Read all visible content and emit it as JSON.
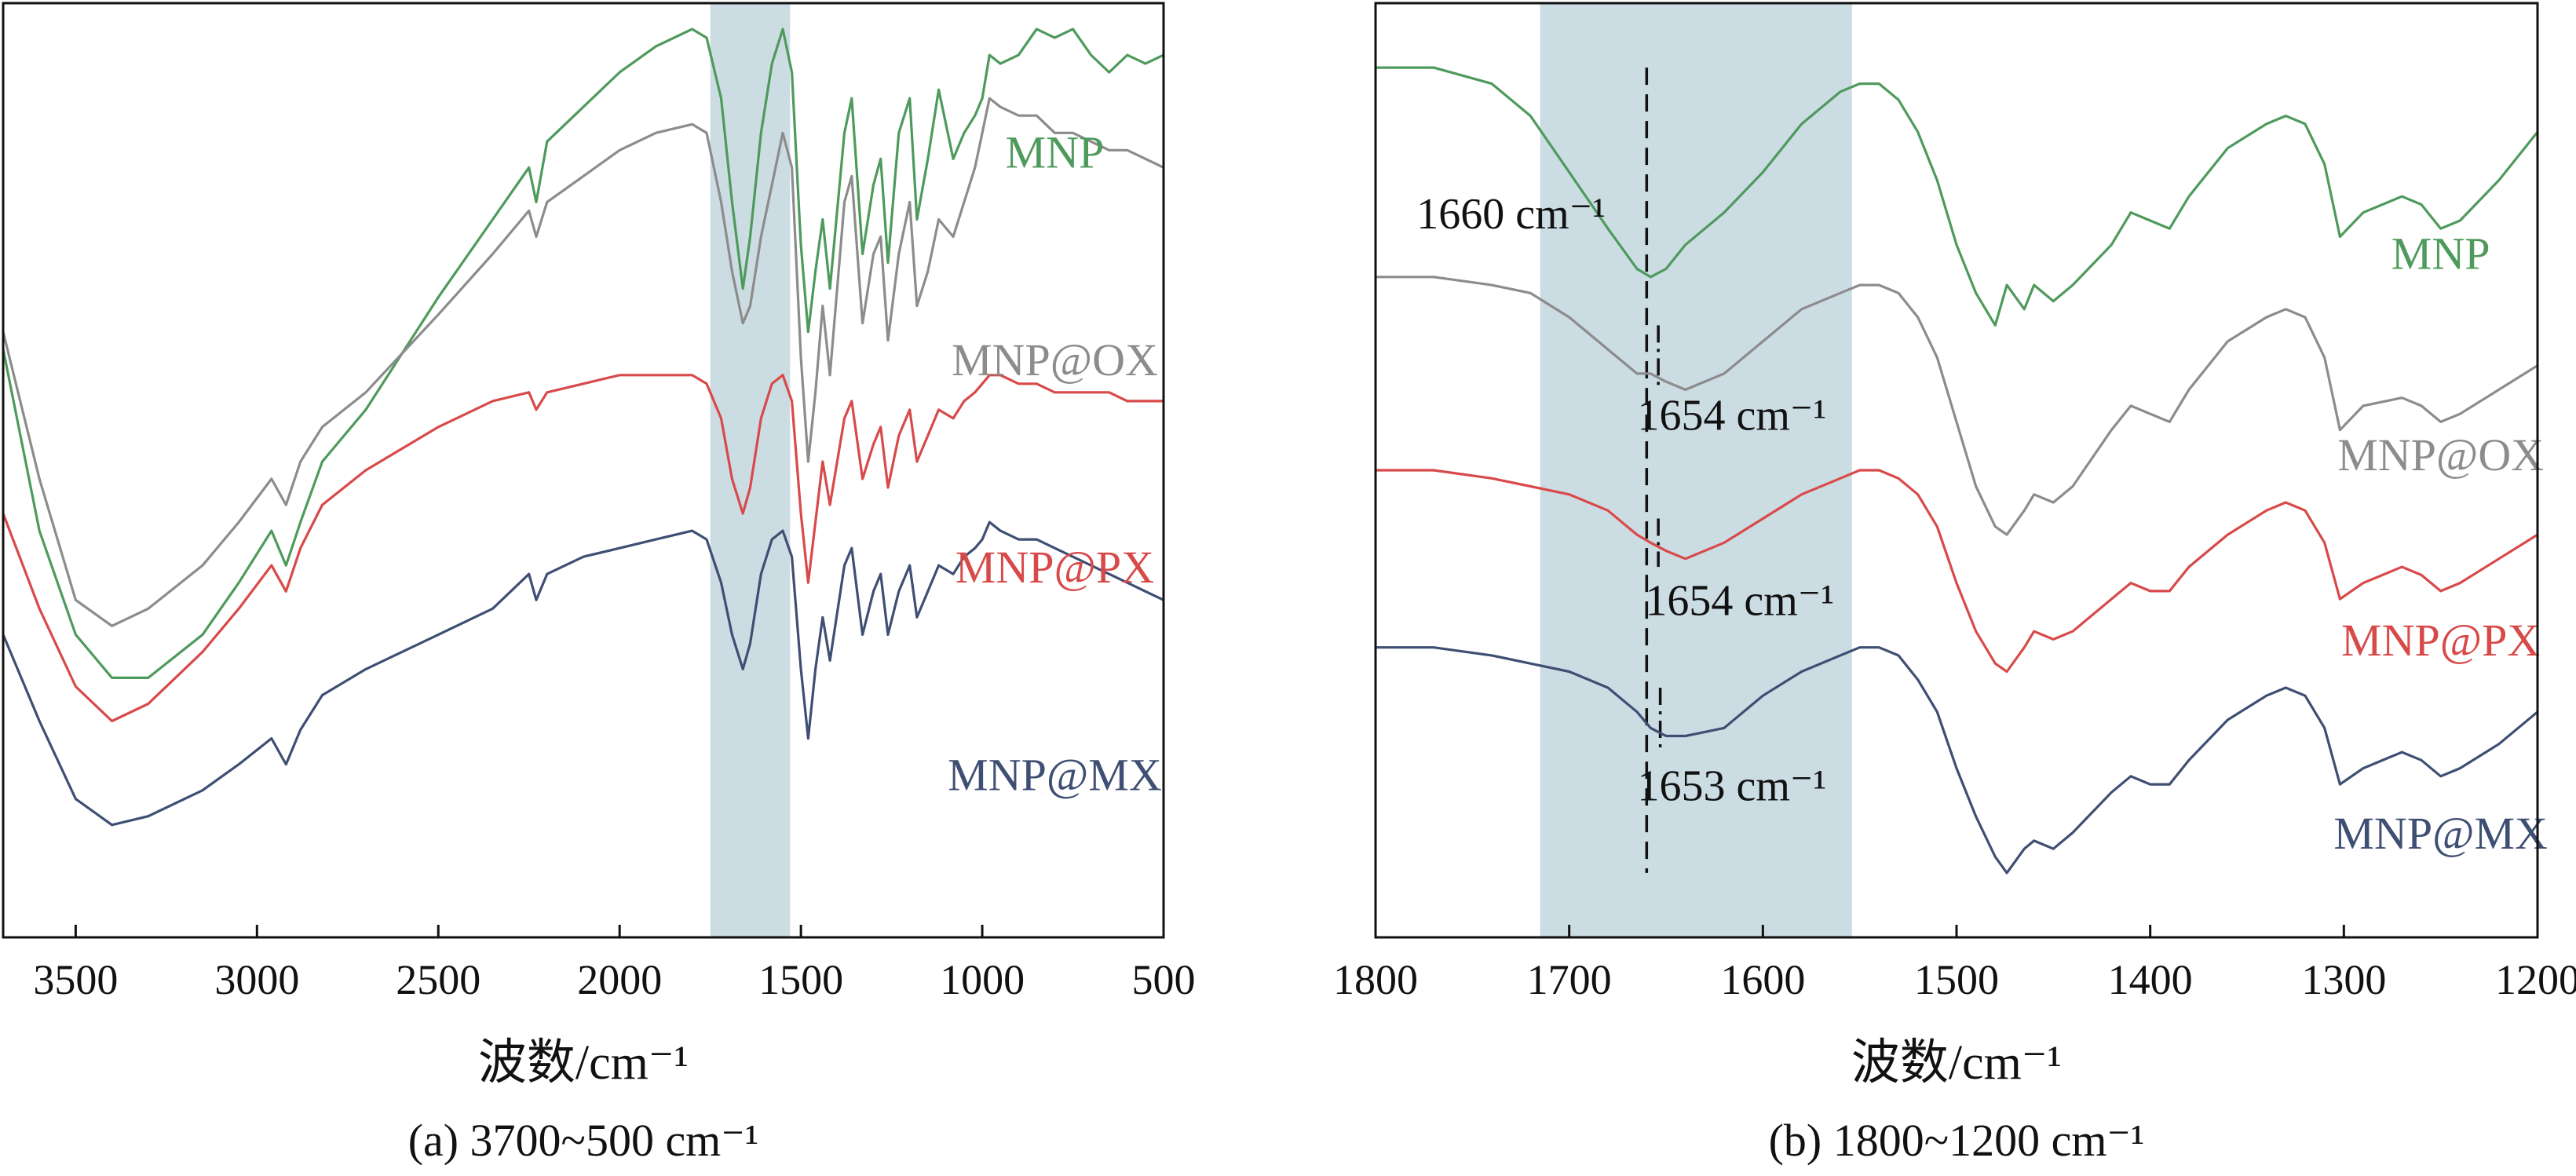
{
  "chart_data": [
    {
      "type": "line",
      "caption": "(a) 3700~500 cm⁻¹",
      "xlabel": "波数/cm⁻¹",
      "ylabel": "",
      "xlim": [
        3700,
        500
      ],
      "x_reversed": true,
      "y_ticks": false,
      "xticks": [
        3500,
        3000,
        2500,
        2000,
        1500,
        1000,
        500
      ],
      "highlight_band": [
        1750,
        1530
      ],
      "highlight_color": "#ccdce3",
      "series": [
        {
          "name": "MNP",
          "color": "#4e9a5c",
          "x": [
            3700,
            3600,
            3500,
            3400,
            3300,
            3150,
            3050,
            2960,
            2920,
            2880,
            2820,
            2700,
            2500,
            2350,
            2250,
            2230,
            2200,
            2100,
            2000,
            1900,
            1800,
            1760,
            1720,
            1690,
            1660,
            1640,
            1610,
            1580,
            1550,
            1525,
            1500,
            1480,
            1460,
            1440,
            1420,
            1380,
            1360,
            1330,
            1300,
            1280,
            1260,
            1230,
            1200,
            1180,
            1150,
            1120,
            1080,
            1050,
            1020,
            1000,
            980,
            950,
            900,
            850,
            800,
            750,
            700,
            650,
            600,
            550,
            500
          ],
          "y": [
            0.63,
            0.42,
            0.3,
            0.25,
            0.25,
            0.3,
            0.36,
            0.42,
            0.38,
            0.43,
            0.5,
            0.56,
            0.69,
            0.78,
            0.84,
            0.8,
            0.87,
            0.91,
            0.95,
            0.98,
            1.0,
            0.99,
            0.92,
            0.8,
            0.7,
            0.76,
            0.88,
            0.96,
            1.0,
            0.95,
            0.75,
            0.65,
            0.72,
            0.78,
            0.7,
            0.88,
            0.92,
            0.74,
            0.82,
            0.85,
            0.73,
            0.88,
            0.92,
            0.78,
            0.85,
            0.93,
            0.85,
            0.88,
            0.9,
            0.92,
            0.97,
            0.96,
            0.97,
            1.0,
            0.99,
            1.0,
            0.97,
            0.95,
            0.97,
            0.96,
            0.97
          ],
          "label_position": [
            800,
            0.84
          ]
        },
        {
          "name": "MNP@OX",
          "color": "#8c8c8c",
          "x": [
            3700,
            3600,
            3500,
            3400,
            3300,
            3150,
            3050,
            2960,
            2920,
            2880,
            2820,
            2700,
            2500,
            2350,
            2250,
            2230,
            2200,
            2100,
            2000,
            1900,
            1800,
            1760,
            1720,
            1690,
            1660,
            1640,
            1610,
            1580,
            1550,
            1525,
            1500,
            1480,
            1460,
            1440,
            1420,
            1380,
            1360,
            1330,
            1300,
            1280,
            1260,
            1230,
            1200,
            1180,
            1150,
            1120,
            1080,
            1050,
            1020,
            1000,
            980,
            950,
            900,
            850,
            800,
            750,
            700,
            650,
            600,
            550,
            500
          ],
          "y": [
            0.65,
            0.48,
            0.34,
            0.31,
            0.33,
            0.38,
            0.43,
            0.48,
            0.45,
            0.5,
            0.54,
            0.58,
            0.67,
            0.74,
            0.79,
            0.76,
            0.8,
            0.83,
            0.86,
            0.88,
            0.89,
            0.88,
            0.8,
            0.72,
            0.66,
            0.68,
            0.76,
            0.82,
            0.88,
            0.84,
            0.62,
            0.5,
            0.58,
            0.68,
            0.6,
            0.8,
            0.83,
            0.66,
            0.74,
            0.76,
            0.64,
            0.74,
            0.8,
            0.68,
            0.72,
            0.78,
            0.76,
            0.8,
            0.84,
            0.88,
            0.92,
            0.91,
            0.9,
            0.9,
            0.88,
            0.88,
            0.87,
            0.86,
            0.86,
            0.85,
            0.84
          ],
          "label_position": [
            800,
            0.6
          ]
        },
        {
          "name": "MNP@PX",
          "color": "#d84a4a",
          "x": [
            3700,
            3600,
            3500,
            3400,
            3300,
            3150,
            3050,
            2960,
            2920,
            2880,
            2820,
            2700,
            2500,
            2350,
            2250,
            2230,
            2200,
            2100,
            2000,
            1900,
            1800,
            1760,
            1720,
            1690,
            1660,
            1640,
            1610,
            1580,
            1550,
            1525,
            1500,
            1480,
            1460,
            1440,
            1420,
            1380,
            1360,
            1330,
            1300,
            1280,
            1260,
            1230,
            1200,
            1180,
            1150,
            1120,
            1080,
            1050,
            1020,
            1000,
            980,
            950,
            900,
            850,
            800,
            750,
            700,
            650,
            600,
            550,
            500
          ],
          "y": [
            0.44,
            0.33,
            0.24,
            0.2,
            0.22,
            0.28,
            0.33,
            0.38,
            0.35,
            0.4,
            0.45,
            0.49,
            0.54,
            0.57,
            0.58,
            0.56,
            0.58,
            0.59,
            0.6,
            0.6,
            0.6,
            0.59,
            0.55,
            0.48,
            0.44,
            0.47,
            0.55,
            0.59,
            0.6,
            0.57,
            0.44,
            0.36,
            0.43,
            0.5,
            0.45,
            0.55,
            0.57,
            0.48,
            0.52,
            0.54,
            0.47,
            0.53,
            0.56,
            0.5,
            0.53,
            0.56,
            0.55,
            0.57,
            0.58,
            0.59,
            0.6,
            0.6,
            0.59,
            0.59,
            0.58,
            0.58,
            0.58,
            0.58,
            0.57,
            0.57,
            0.57
          ],
          "label_position": [
            800,
            0.36
          ]
        },
        {
          "name": "MNP@MX",
          "color": "#3f4e73",
          "x": [
            3700,
            3600,
            3500,
            3400,
            3300,
            3150,
            3050,
            2960,
            2920,
            2880,
            2820,
            2700,
            2500,
            2350,
            2250,
            2230,
            2200,
            2100,
            2000,
            1900,
            1800,
            1760,
            1720,
            1690,
            1660,
            1640,
            1610,
            1580,
            1550,
            1525,
            1500,
            1480,
            1460,
            1440,
            1420,
            1380,
            1360,
            1330,
            1300,
            1280,
            1260,
            1230,
            1200,
            1180,
            1150,
            1120,
            1080,
            1050,
            1020,
            1000,
            980,
            950,
            900,
            850,
            800,
            750,
            700,
            650,
            600,
            550,
            500
          ],
          "y": [
            0.3,
            0.2,
            0.11,
            0.08,
            0.09,
            0.12,
            0.15,
            0.18,
            0.15,
            0.19,
            0.23,
            0.26,
            0.3,
            0.33,
            0.37,
            0.34,
            0.37,
            0.39,
            0.4,
            0.41,
            0.42,
            0.41,
            0.36,
            0.3,
            0.26,
            0.29,
            0.37,
            0.41,
            0.42,
            0.39,
            0.26,
            0.18,
            0.26,
            0.32,
            0.27,
            0.38,
            0.4,
            0.3,
            0.35,
            0.37,
            0.3,
            0.35,
            0.38,
            0.32,
            0.35,
            0.38,
            0.37,
            0.39,
            0.4,
            0.41,
            0.43,
            0.42,
            0.41,
            0.41,
            0.4,
            0.39,
            0.38,
            0.37,
            0.36,
            0.35,
            0.34
          ],
          "label_position": [
            800,
            0.12
          ]
        }
      ]
    },
    {
      "type": "line",
      "caption": "(b) 1800~1200 cm⁻¹",
      "xlabel": "波数/cm⁻¹",
      "ylabel": "",
      "xlim": [
        1800,
        1200
      ],
      "x_reversed": true,
      "y_ticks": false,
      "xticks": [
        1800,
        1700,
        1600,
        1500,
        1400,
        1300,
        1200
      ],
      "highlight_band": [
        1715,
        1554
      ],
      "highlight_color": "#ccdce3",
      "reference_lines": [
        {
          "x": 1660,
          "style": "dashed",
          "y_range": [
            0.0,
            1.0
          ]
        },
        {
          "x": 1654,
          "style": "dashdot",
          "y_range": [
            0.6,
            0.68
          ]
        },
        {
          "x": 1654,
          "style": "dashdot",
          "y_range": [
            0.38,
            0.44
          ]
        },
        {
          "x": 1653,
          "style": "dashdot",
          "y_range": [
            0.15,
            0.23
          ]
        }
      ],
      "annotations": [
        {
          "text": "1660 cm⁻¹",
          "x": 1730,
          "y": 0.8
        },
        {
          "text": "1654 cm⁻¹",
          "x": 1616,
          "y": 0.55
        },
        {
          "text": "1654 cm⁻¹",
          "x": 1612,
          "y": 0.32
        },
        {
          "text": "1653 cm⁻¹",
          "x": 1616,
          "y": 0.09
        }
      ],
      "series": [
        {
          "name": "MNP",
          "color": "#4e9a5c",
          "x": [
            1800,
            1770,
            1740,
            1720,
            1700,
            1680,
            1665,
            1658,
            1650,
            1640,
            1620,
            1600,
            1580,
            1560,
            1550,
            1540,
            1530,
            1520,
            1510,
            1500,
            1490,
            1480,
            1474,
            1465,
            1460,
            1450,
            1440,
            1420,
            1410,
            1400,
            1390,
            1380,
            1360,
            1340,
            1330,
            1320,
            1310,
            1302,
            1290,
            1270,
            1260,
            1250,
            1240,
            1220,
            1200
          ],
          "y": [
            1.0,
            1.0,
            0.98,
            0.94,
            0.87,
            0.8,
            0.75,
            0.74,
            0.75,
            0.78,
            0.82,
            0.87,
            0.93,
            0.97,
            0.98,
            0.98,
            0.96,
            0.92,
            0.86,
            0.78,
            0.72,
            0.68,
            0.73,
            0.7,
            0.73,
            0.71,
            0.73,
            0.78,
            0.82,
            0.81,
            0.8,
            0.84,
            0.9,
            0.93,
            0.94,
            0.93,
            0.88,
            0.79,
            0.82,
            0.84,
            0.83,
            0.8,
            0.81,
            0.86,
            0.92
          ],
          "label_position": [
            1250,
            0.75
          ]
        },
        {
          "name": "MNP@OX",
          "color": "#8c8c8c",
          "x": [
            1800,
            1770,
            1740,
            1720,
            1700,
            1680,
            1665,
            1658,
            1650,
            1640,
            1620,
            1600,
            1580,
            1560,
            1550,
            1540,
            1530,
            1520,
            1510,
            1500,
            1490,
            1480,
            1474,
            1465,
            1460,
            1450,
            1440,
            1420,
            1410,
            1400,
            1390,
            1380,
            1360,
            1340,
            1330,
            1320,
            1310,
            1302,
            1290,
            1270,
            1260,
            1250,
            1240,
            1220,
            1200
          ],
          "y": [
            0.74,
            0.74,
            0.73,
            0.72,
            0.69,
            0.65,
            0.62,
            0.62,
            0.61,
            0.6,
            0.62,
            0.66,
            0.7,
            0.72,
            0.73,
            0.73,
            0.72,
            0.69,
            0.64,
            0.56,
            0.48,
            0.43,
            0.42,
            0.45,
            0.47,
            0.46,
            0.48,
            0.55,
            0.58,
            0.57,
            0.56,
            0.6,
            0.66,
            0.69,
            0.7,
            0.69,
            0.64,
            0.55,
            0.58,
            0.59,
            0.58,
            0.56,
            0.57,
            0.6,
            0.63
          ],
          "label_position": [
            1250,
            0.5
          ]
        },
        {
          "name": "MNP@PX",
          "color": "#d84a4a",
          "x": [
            1800,
            1770,
            1740,
            1720,
            1700,
            1680,
            1665,
            1658,
            1650,
            1640,
            1620,
            1600,
            1580,
            1560,
            1550,
            1540,
            1530,
            1520,
            1510,
            1500,
            1490,
            1480,
            1474,
            1465,
            1460,
            1450,
            1440,
            1420,
            1410,
            1400,
            1390,
            1380,
            1360,
            1340,
            1330,
            1320,
            1310,
            1302,
            1290,
            1270,
            1260,
            1250,
            1240,
            1220,
            1200
          ],
          "y": [
            0.5,
            0.5,
            0.49,
            0.48,
            0.47,
            0.45,
            0.42,
            0.41,
            0.4,
            0.39,
            0.41,
            0.44,
            0.47,
            0.49,
            0.5,
            0.5,
            0.49,
            0.47,
            0.43,
            0.36,
            0.3,
            0.26,
            0.25,
            0.28,
            0.3,
            0.29,
            0.3,
            0.34,
            0.36,
            0.35,
            0.35,
            0.38,
            0.42,
            0.45,
            0.46,
            0.45,
            0.41,
            0.34,
            0.36,
            0.38,
            0.37,
            0.35,
            0.36,
            0.39,
            0.42
          ],
          "label_position": [
            1250,
            0.27
          ]
        },
        {
          "name": "MNP@MX",
          "color": "#3f4e73",
          "x": [
            1800,
            1770,
            1740,
            1720,
            1700,
            1680,
            1665,
            1658,
            1650,
            1640,
            1620,
            1600,
            1580,
            1560,
            1550,
            1540,
            1530,
            1520,
            1510,
            1500,
            1490,
            1480,
            1474,
            1465,
            1460,
            1450,
            1440,
            1420,
            1410,
            1400,
            1390,
            1380,
            1360,
            1340,
            1330,
            1320,
            1310,
            1302,
            1290,
            1270,
            1260,
            1250,
            1240,
            1220,
            1200
          ],
          "y": [
            0.28,
            0.28,
            0.27,
            0.26,
            0.25,
            0.23,
            0.2,
            0.18,
            0.17,
            0.17,
            0.18,
            0.22,
            0.25,
            0.27,
            0.28,
            0.28,
            0.27,
            0.24,
            0.2,
            0.13,
            0.07,
            0.02,
            0.0,
            0.03,
            0.04,
            0.03,
            0.05,
            0.1,
            0.12,
            0.11,
            0.11,
            0.14,
            0.19,
            0.22,
            0.23,
            0.22,
            0.18,
            0.11,
            0.13,
            0.15,
            0.14,
            0.12,
            0.13,
            0.16,
            0.2
          ],
          "label_position": [
            1250,
            0.03
          ]
        }
      ]
    }
  ]
}
